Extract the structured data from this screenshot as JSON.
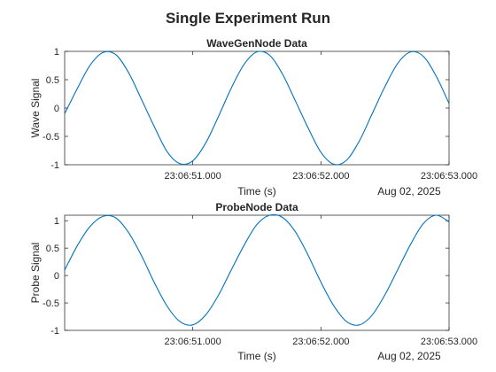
{
  "figure": {
    "title": "Single Experiment Run"
  },
  "colors": {
    "series": "#0072bd",
    "axes": "#262626",
    "background": "#ffffff"
  },
  "chart_data": [
    {
      "type": "line",
      "title": "WaveGenNode Data",
      "xlabel": "Time (s)",
      "ylabel": "Wave Signal",
      "date_label": "Aug 02, 2025",
      "x_unit": "seconds after 23:06:50.000",
      "xlim": [
        0.0,
        3.0
      ],
      "ylim": [
        -1,
        1
      ],
      "xticks": [
        1.0,
        2.0,
        3.0
      ],
      "xtick_labels": [
        "23:06:51.000",
        "23:06:52.000",
        "23:06:53.000"
      ],
      "yticks": [
        1,
        0.5,
        0,
        -0.5,
        -1
      ],
      "ytick_labels": [
        "1",
        "0.5",
        "0",
        "-0.5",
        "-1"
      ],
      "grid": false,
      "series": [
        {
          "x": [
            0.0,
            0.1,
            0.2,
            0.3,
            0.4,
            0.5,
            0.6,
            0.7,
            0.8,
            0.9,
            1.0,
            1.1,
            1.2,
            1.3,
            1.4,
            1.5,
            1.6,
            1.7,
            1.8,
            1.9,
            2.0,
            2.1,
            2.2,
            2.3,
            2.4,
            2.5,
            2.6,
            2.7,
            2.8,
            2.9,
            3.0
          ],
          "values": [
            -0.1,
            0.35,
            0.76,
            0.98,
            0.94,
            0.62,
            0.15,
            -0.33,
            -0.77,
            -0.98,
            -0.93,
            -0.62,
            -0.15,
            0.35,
            0.77,
            0.99,
            0.93,
            0.6,
            0.13,
            -0.35,
            -0.78,
            -0.99,
            -0.92,
            -0.58,
            -0.1,
            0.38,
            0.79,
            0.99,
            0.91,
            0.56,
            0.08
          ]
        }
      ]
    },
    {
      "type": "line",
      "title": "ProbeNode Data",
      "xlabel": "Time (s)",
      "ylabel": "Probe Signal",
      "date_label": "Aug 02, 2025",
      "x_unit": "seconds after 23:06:50.000",
      "xlim": [
        0.0,
        3.0
      ],
      "ylim": [
        -1,
        1.1
      ],
      "xticks": [
        1.0,
        2.0,
        3.0
      ],
      "xtick_labels": [
        "23:06:51.000",
        "23:06:52.000",
        "23:06:53.000"
      ],
      "yticks": [
        1,
        0.5,
        0,
        -0.5,
        -1
      ],
      "ytick_labels": [
        "1",
        "0.5",
        "0",
        "-0.5",
        "-1"
      ],
      "grid": false,
      "series": [
        {
          "x": [
            0.0,
            0.1,
            0.2,
            0.3,
            0.4,
            0.5,
            0.6,
            0.7,
            0.8,
            0.9,
            1.0,
            1.1,
            1.2,
            1.3,
            1.4,
            1.5,
            1.6,
            1.7,
            1.8,
            1.9,
            2.0,
            2.1,
            2.2,
            2.3,
            2.4,
            2.5,
            2.6,
            2.7,
            2.8,
            2.9,
            3.0
          ],
          "values": [
            0.1,
            0.55,
            0.9,
            1.08,
            1.05,
            0.78,
            0.36,
            -0.13,
            -0.56,
            -0.84,
            -0.9,
            -0.72,
            -0.36,
            0.1,
            0.55,
            0.93,
            1.1,
            1.06,
            0.8,
            0.37,
            -0.12,
            -0.55,
            -0.84,
            -0.9,
            -0.72,
            -0.35,
            0.11,
            0.57,
            0.95,
            1.1,
            0.98
          ]
        }
      ]
    }
  ]
}
